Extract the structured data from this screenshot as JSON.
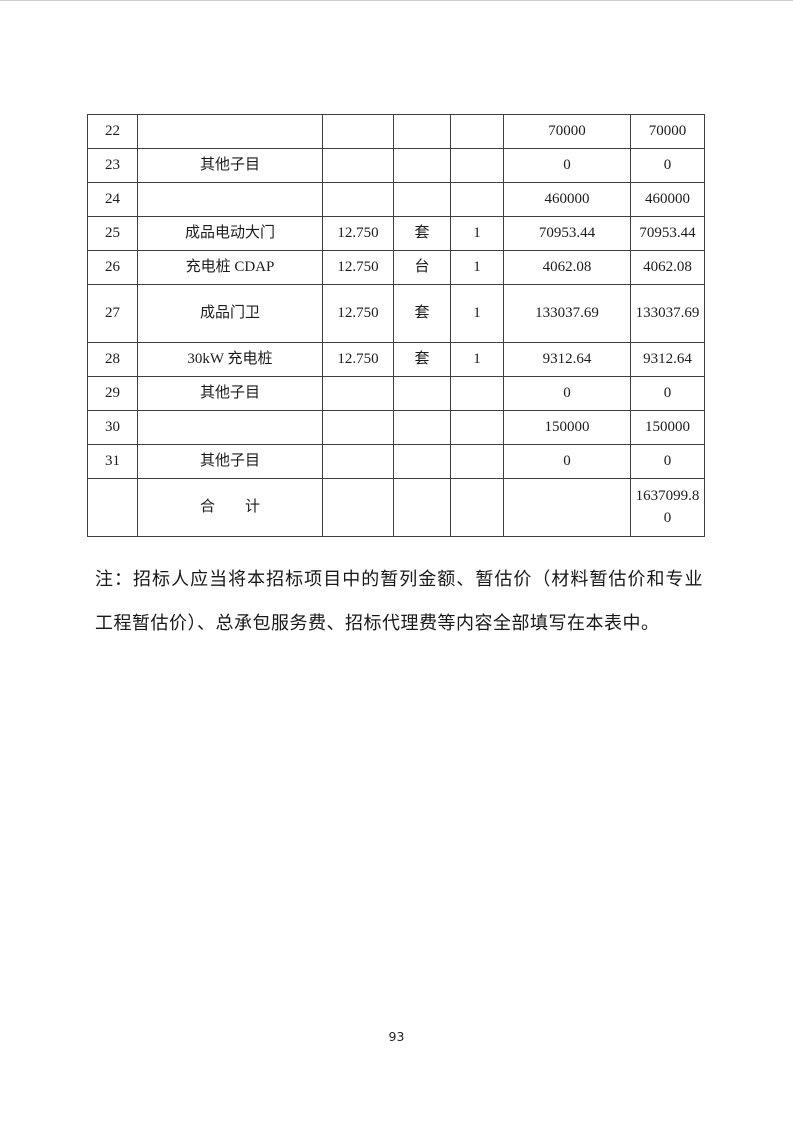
{
  "document": {
    "note": "注：招标人应当将本招标项目中的暂列金额、暂估价（材料暂估价和专业工程暂估价）、总承包服务费、招标代理费等内容全部填写在本表中。",
    "page_number": "93",
    "colors": {
      "ink": "#1c1c1c",
      "table_border": "#3f3f3f",
      "background": "#ffffff"
    }
  },
  "table": {
    "rows": [
      {
        "cells": [
          "22",
          "",
          "",
          "",
          "",
          "70000",
          "70000"
        ]
      },
      {
        "cells": [
          "23",
          "其他子目",
          "",
          "",
          "",
          "0",
          "0"
        ]
      },
      {
        "cells": [
          "24",
          "",
          "",
          "",
          "",
          "460000",
          "460000"
        ]
      },
      {
        "cells": [
          "25",
          "成品电动大门",
          "12.750",
          "套",
          "1",
          "70953.44",
          "70953.44"
        ]
      },
      {
        "cells": [
          "26",
          "充电桩 CDAP",
          "12.750",
          "台",
          "1",
          "4062.08",
          "4062.08"
        ]
      },
      {
        "cells": [
          "27",
          "成品门卫",
          "12.750",
          "套",
          "1",
          "133037.69",
          "133037.69"
        ]
      },
      {
        "cells": [
          "28",
          "30kW 充电桩",
          "12.750",
          "套",
          "1",
          "9312.64",
          "9312.64"
        ]
      },
      {
        "cells": [
          "29",
          "其他子目",
          "",
          "",
          "",
          "0",
          "0"
        ]
      },
      {
        "cells": [
          "30",
          "",
          "",
          "",
          "",
          "150000",
          "150000"
        ]
      },
      {
        "cells": [
          "31",
          "其他子目",
          "",
          "",
          "",
          "0",
          "0"
        ]
      },
      {
        "cells": [
          "",
          "合　　计",
          "",
          "",
          "",
          "",
          "1637099.80"
        ]
      }
    ]
  }
}
